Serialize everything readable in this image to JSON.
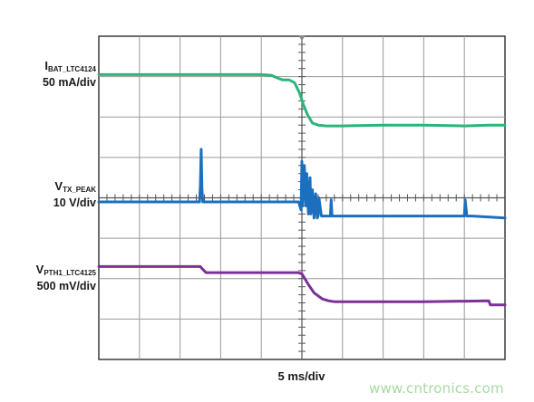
{
  "chart_data": {
    "type": "line",
    "title": "",
    "xlabel": "5 ms/div",
    "x_divisions": 10,
    "y_divisions": 8,
    "x_range_ms": [
      0,
      50
    ],
    "trigger_x_ms": 25,
    "grid": true,
    "series": [
      {
        "name": "I",
        "sub": "BAT_LTC4124",
        "scale": "50 mA/div",
        "color": "#2bb57c",
        "x": [
          0,
          20,
          21.3,
          21.8,
          22.2,
          22.6,
          23.4,
          24.1,
          24.7,
          25.2,
          25.7,
          26.3,
          27,
          28,
          30,
          35,
          40,
          45,
          48,
          50
        ],
        "y": [
          7.05,
          7.05,
          7.03,
          6.98,
          6.95,
          6.92,
          6.92,
          6.85,
          6.6,
          6.3,
          6.05,
          5.85,
          5.8,
          5.78,
          5.78,
          5.8,
          5.8,
          5.78,
          5.8,
          5.8
        ]
      },
      {
        "name": "V",
        "sub": "TX_PEAK",
        "scale": "10 V/div",
        "color": "#1b6fbd",
        "x": [
          0,
          12.4,
          12.5,
          12.6,
          12.7,
          12.8,
          20,
          24.6,
          24.9,
          25,
          25.1,
          25.3,
          25.5,
          25.6,
          25.8,
          26,
          26.1,
          26.3,
          26.5,
          26.7,
          26.9,
          27,
          27.1,
          27.4,
          28,
          28.5,
          28.6,
          28.7,
          29,
          30,
          40,
          45,
          45.1,
          45.3,
          46,
          50
        ],
        "y": [
          3.9,
          3.9,
          4.3,
          5.2,
          4.2,
          3.9,
          3.9,
          3.9,
          3.7,
          4.9,
          3.8,
          4.8,
          3.8,
          4.6,
          3.6,
          4.5,
          3.6,
          4.2,
          3.5,
          4.1,
          3.5,
          3.55,
          4.0,
          3.55,
          3.55,
          3.55,
          3.95,
          3.55,
          3.55,
          3.55,
          3.55,
          3.55,
          3.95,
          3.55,
          3.55,
          3.5
        ]
      },
      {
        "name": "V",
        "sub": "PTH1_LTC4125",
        "scale": "500 mV/div",
        "color": "#7b3196",
        "x": [
          0,
          12.5,
          12.7,
          13.2,
          20,
          24.5,
          25,
          25.8,
          26.5,
          27.5,
          28.3,
          29,
          40,
          48,
          48.2,
          50
        ],
        "y": [
          2.3,
          2.3,
          2.25,
          2.15,
          2.15,
          2.15,
          2.12,
          1.85,
          1.65,
          1.5,
          1.45,
          1.43,
          1.43,
          1.45,
          1.35,
          1.35
        ]
      }
    ]
  },
  "watermark": "www.cntronics.com"
}
